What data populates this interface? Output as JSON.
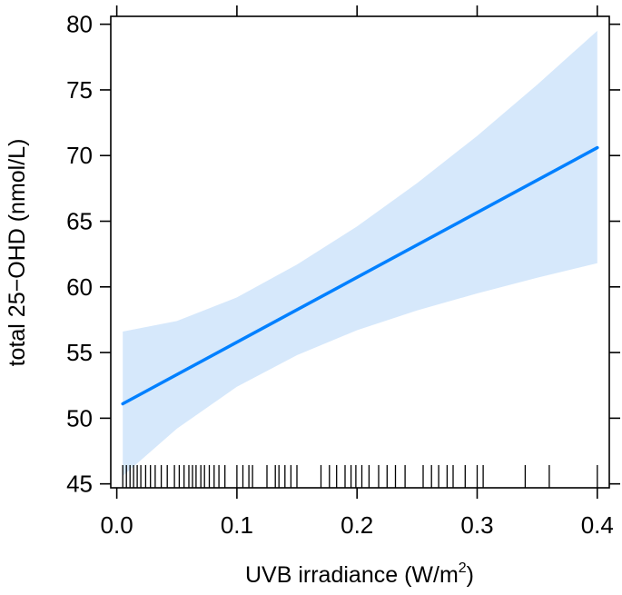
{
  "chart_data": {
    "type": "line",
    "xlabel": "UVB irradiance (W/m",
    "xlabel_superscript": "2",
    "xlabel_suffix": ")",
    "ylabel": "total 25−OHD (nmol/L)",
    "xlim": [
      -0.005,
      0.41
    ],
    "ylim": [
      44.7,
      80.6
    ],
    "x_ticks": [
      0.0,
      0.1,
      0.2,
      0.3,
      0.4
    ],
    "x_tick_labels": [
      "0.0",
      "0.1",
      "0.2",
      "0.3",
      "0.4"
    ],
    "y_ticks": [
      45,
      50,
      55,
      60,
      65,
      70,
      75,
      80
    ],
    "y_tick_labels": [
      "45",
      "50",
      "55",
      "60",
      "65",
      "70",
      "75",
      "80"
    ],
    "grid": false,
    "colors": {
      "line": "#0080ff",
      "band": "#d6e8fb",
      "rug": "#000000"
    },
    "series": [
      {
        "x": [
          0.005,
          0.4
        ],
        "y": [
          51.1,
          70.6
        ]
      }
    ],
    "confidence_band": {
      "x": [
        0.005,
        0.05,
        0.1,
        0.15,
        0.2,
        0.25,
        0.3,
        0.35,
        0.4
      ],
      "lower": [
        45.6,
        49.2,
        52.4,
        54.8,
        56.7,
        58.2,
        59.5,
        60.7,
        61.8
      ],
      "upper": [
        56.6,
        57.4,
        59.2,
        61.7,
        64.6,
        67.9,
        71.5,
        75.4,
        79.5
      ]
    },
    "rug_x": [
      0.005,
      0.008,
      0.011,
      0.014,
      0.017,
      0.02,
      0.024,
      0.028,
      0.032,
      0.037,
      0.042,
      0.048,
      0.052,
      0.056,
      0.06,
      0.063,
      0.066,
      0.07,
      0.073,
      0.077,
      0.081,
      0.085,
      0.09,
      0.1,
      0.105,
      0.11,
      0.113,
      0.125,
      0.132,
      0.135,
      0.14,
      0.145,
      0.15,
      0.17,
      0.177,
      0.183,
      0.19,
      0.195,
      0.199,
      0.204,
      0.21,
      0.218,
      0.225,
      0.232,
      0.24,
      0.255,
      0.262,
      0.268,
      0.275,
      0.28,
      0.29,
      0.3,
      0.305,
      0.34,
      0.36,
      0.4
    ]
  }
}
